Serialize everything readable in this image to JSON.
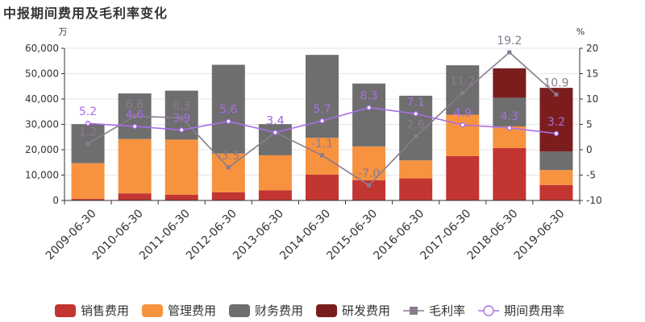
{
  "chart_data": {
    "type": "bar",
    "title": "中报期间费用及毛利率变化",
    "y_left_unit": "万",
    "y_right_unit": "%",
    "ylim_left": [
      0,
      60000
    ],
    "ylim_right": [
      -10,
      20
    ],
    "y_left_ticks": [
      "0",
      "10,000",
      "20,000",
      "30,000",
      "40,000",
      "50,000",
      "60,000"
    ],
    "y_right_ticks": [
      "-10",
      "-5",
      "0",
      "5",
      "10",
      "15",
      "20"
    ],
    "categories": [
      "2009-06-30",
      "2010-06-30",
      "2011-06-30",
      "2012-06-30",
      "2013-06-30",
      "2014-06-30",
      "2015-06-30",
      "2016-06-30",
      "2017-06-30",
      "2018-06-30",
      "2019-06-30"
    ],
    "stacked": true,
    "series": [
      {
        "name": "销售费用",
        "type": "bar",
        "color": "#c23531",
        "values": [
          600,
          2800,
          2300,
          3200,
          4000,
          10200,
          8000,
          8700,
          17500,
          20700,
          6100
        ]
      },
      {
        "name": "管理费用",
        "type": "bar",
        "color": "#f7923f",
        "values": [
          14100,
          21400,
          21700,
          15300,
          13800,
          14500,
          13300,
          7100,
          16300,
          8500,
          5900
        ]
      },
      {
        "name": "财务费用",
        "type": "bar",
        "color": "#6e6e6e",
        "values": [
          15400,
          18000,
          19300,
          35000,
          12300,
          32700,
          24800,
          25500,
          19500,
          11300,
          7300
        ]
      },
      {
        "name": "研发费用",
        "type": "bar",
        "color": "#7b1d1d",
        "values": [
          0,
          0,
          0,
          0,
          0,
          0,
          0,
          0,
          0,
          11600,
          25100
        ]
      },
      {
        "name": "毛利率",
        "type": "line",
        "axis": "right",
        "color": "#8a7b8f",
        "marker": "square",
        "values": [
          1.2,
          6.6,
          6.3,
          -3.5,
          3.4,
          -1.1,
          -7.0,
          2.6,
          11.2,
          19.2,
          10.9
        ]
      },
      {
        "name": "期间费用率",
        "type": "line",
        "axis": "right",
        "color": "#a86ee8",
        "marker": "circle",
        "values": [
          5.2,
          4.6,
          3.9,
          5.6,
          3.4,
          5.7,
          8.3,
          7.1,
          4.9,
          4.3,
          3.2
        ]
      }
    ],
    "grid": true,
    "legend_position": "bottom"
  }
}
